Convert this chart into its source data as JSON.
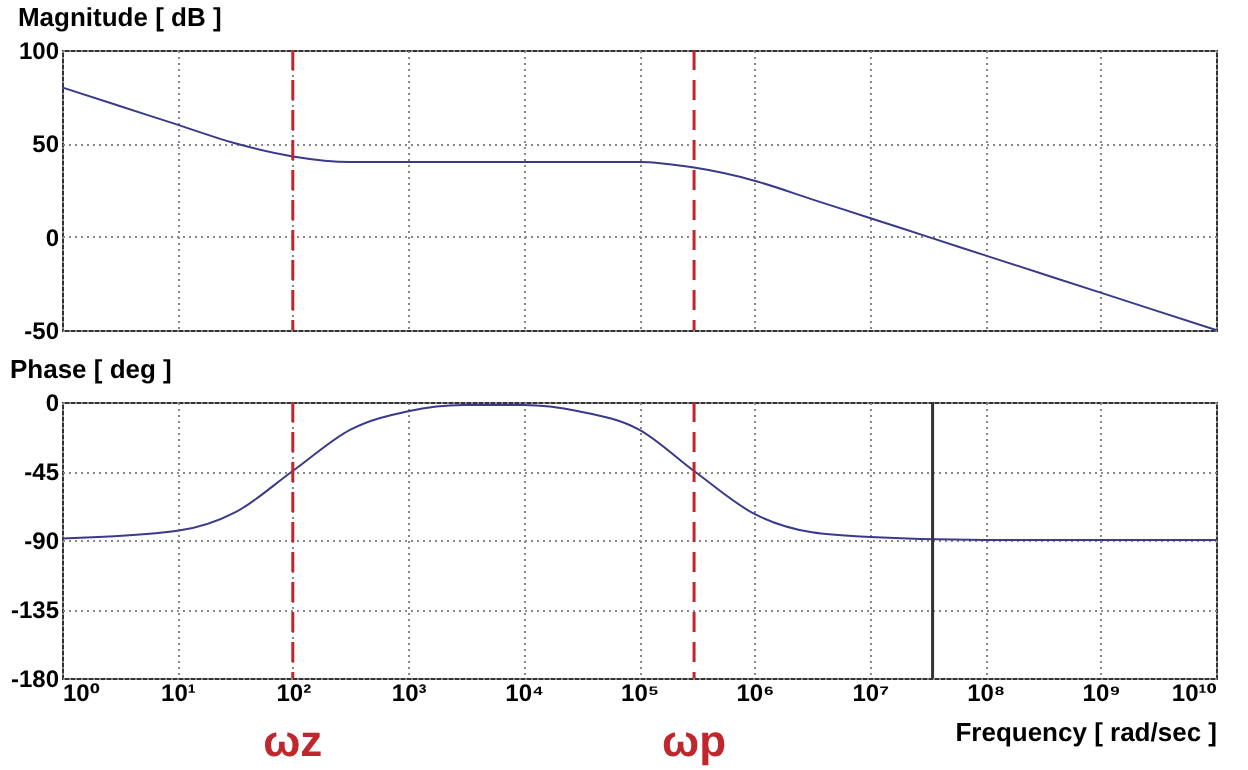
{
  "chart_data": [
    {
      "type": "line",
      "title": "Magnitude [ dB ]",
      "log": "x",
      "grid": true,
      "tick_labels": "y",
      "xlim": [
        1,
        10000000000
      ],
      "ylim": [
        -50,
        100
      ],
      "yticks": [
        -50,
        0,
        50,
        100
      ],
      "xticks": [
        {
          "value": 1,
          "label": null
        },
        {
          "value": 10,
          "label": null
        },
        {
          "value": 100,
          "label": null
        },
        {
          "value": 1000,
          "label": null
        },
        {
          "value": 10000,
          "label": null
        },
        {
          "value": 100000,
          "label": null
        },
        {
          "value": 1000000,
          "label": null
        },
        {
          "value": 10000000,
          "label": null
        },
        {
          "value": 100000000,
          "label": null
        },
        {
          "value": 1000000000,
          "label": null
        },
        {
          "value": 10000000000,
          "label": null
        }
      ],
      "x": [
        1,
        3.16,
        10,
        31.6,
        100,
        316,
        1000,
        10000,
        100000,
        300000,
        1000000,
        3160000,
        10000000,
        31600000,
        100000000,
        1000000000,
        10000000000
      ],
      "series": [
        {
          "color": "#3a3a8c",
          "values": [
            80,
            70,
            60,
            50,
            43,
            40,
            40,
            40,
            40,
            37,
            30,
            20,
            10,
            0,
            -10,
            -30,
            -50
          ]
        }
      ],
      "ref_lines": [
        {
          "axis": "x",
          "value": 100,
          "color": "#c0272d",
          "line_style": "dashed"
        },
        {
          "axis": "x",
          "value": 300000,
          "color": "#c0272d",
          "line_style": "dashed"
        }
      ]
    },
    {
      "type": "line",
      "title": "Phase [ deg ]",
      "xlabel": "Frequency [ rad/sec ]",
      "log": "x",
      "grid": true,
      "xlim": [
        1,
        10000000000
      ],
      "ylim": [
        -180,
        0
      ],
      "yticks": [
        -180,
        -135,
        -90,
        -45,
        0
      ],
      "xticks": [
        {
          "value": 1,
          "label": "10⁰"
        },
        {
          "value": 10,
          "label": "10¹"
        },
        {
          "value": 100,
          "label": "10²"
        },
        {
          "value": 1000,
          "label": "10³"
        },
        {
          "value": 10000,
          "label": "10⁴"
        },
        {
          "value": 100000,
          "label": "10⁵"
        },
        {
          "value": 1000000,
          "label": "10⁶"
        },
        {
          "value": 10000000,
          "label": "10⁷"
        },
        {
          "value": 100000000,
          "label": "10⁸"
        },
        {
          "value": 1000000000,
          "label": "10⁹"
        },
        {
          "value": 10000000000,
          "label": "10¹⁰"
        }
      ],
      "x": [
        1,
        10,
        31.6,
        100,
        316,
        1000,
        3000,
        10000,
        30000,
        100000,
        300000,
        1000000,
        3160000,
        10000000,
        100000000,
        10000000000
      ],
      "series": [
        {
          "color": "#3a3a8c",
          "values": [
            -89,
            -84,
            -72,
            -45,
            -18,
            -6,
            -2,
            -2,
            -6,
            -18,
            -45,
            -73,
            -85,
            -88,
            -90,
            -90
          ]
        }
      ],
      "ref_lines": [
        {
          "axis": "x",
          "value": 100,
          "color": "#c0272d",
          "line_style": "dashed",
          "label": "ωz"
        },
        {
          "axis": "x",
          "value": 300000,
          "color": "#c0272d",
          "line_style": "dashed",
          "label": "ωp"
        },
        {
          "axis": "x",
          "value": 35000000,
          "color": "#333333",
          "line_style": "solid"
        }
      ]
    }
  ]
}
